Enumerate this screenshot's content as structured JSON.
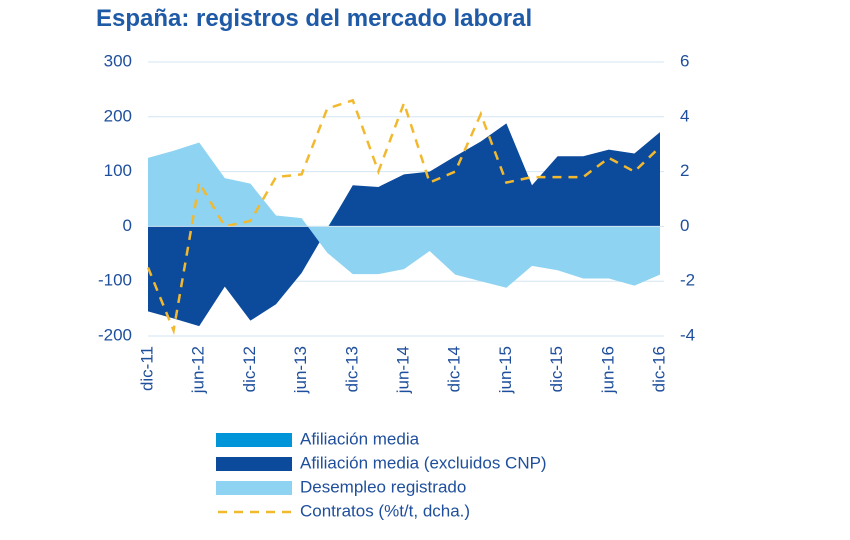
{
  "chart_data": {
    "type": "area",
    "title": "España: registros del mercado laboral",
    "categories": [
      "dic-11",
      null,
      "jun-12",
      null,
      "dic-12",
      null,
      "jun-13",
      null,
      "dic-13",
      null,
      "jun-14",
      null,
      "dic-14",
      null,
      "jun-15",
      null,
      "dic-15",
      null,
      "jun-16",
      null,
      "dic-16"
    ],
    "series": [
      {
        "name": "Afiliación media",
        "color": "#0095d9",
        "type": "area",
        "values": [
          -150,
          -165,
          -178,
          -108,
          -168,
          -140,
          -82,
          -3,
          73,
          70,
          93,
          98,
          125,
          152,
          185,
          73,
          125,
          125,
          137,
          130,
          168
        ]
      },
      {
        "name": "Afiliación media (excluidos CNP)",
        "color": "#0c4a9c",
        "type": "area",
        "values": [
          -155,
          -168,
          -182,
          -110,
          -172,
          -142,
          -85,
          -5,
          75,
          72,
          95,
          100,
          128,
          155,
          188,
          75,
          128,
          128,
          140,
          133,
          172
        ]
      },
      {
        "name": "Desempleo registrado",
        "color": "#8ed3f2",
        "type": "area",
        "values": [
          125,
          138,
          153,
          88,
          78,
          20,
          15,
          -48,
          -87,
          -87,
          -78,
          -45,
          -88,
          -100,
          -112,
          -72,
          -80,
          -95,
          -95,
          -108,
          -88
        ]
      },
      {
        "name": "Contratos (%t/t, dcha.)",
        "color": "#f2b92f",
        "type": "line",
        "axis": "y2",
        "values": [
          -1.5,
          -3.8,
          1.6,
          0,
          0.2,
          1.8,
          1.9,
          4.3,
          4.6,
          2.0,
          4.5,
          1.6,
          2.0,
          4.1,
          1.6,
          1.8,
          1.8,
          1.8,
          2.5,
          2.0,
          2.9
        ]
      }
    ],
    "ylim": [
      -200,
      300
    ],
    "yticks": [
      -200,
      -100,
      0,
      100,
      200,
      300
    ],
    "y2lim": [
      -4,
      6
    ],
    "y2ticks": [
      -4,
      -2,
      0,
      2,
      4,
      6
    ],
    "grid": true
  }
}
